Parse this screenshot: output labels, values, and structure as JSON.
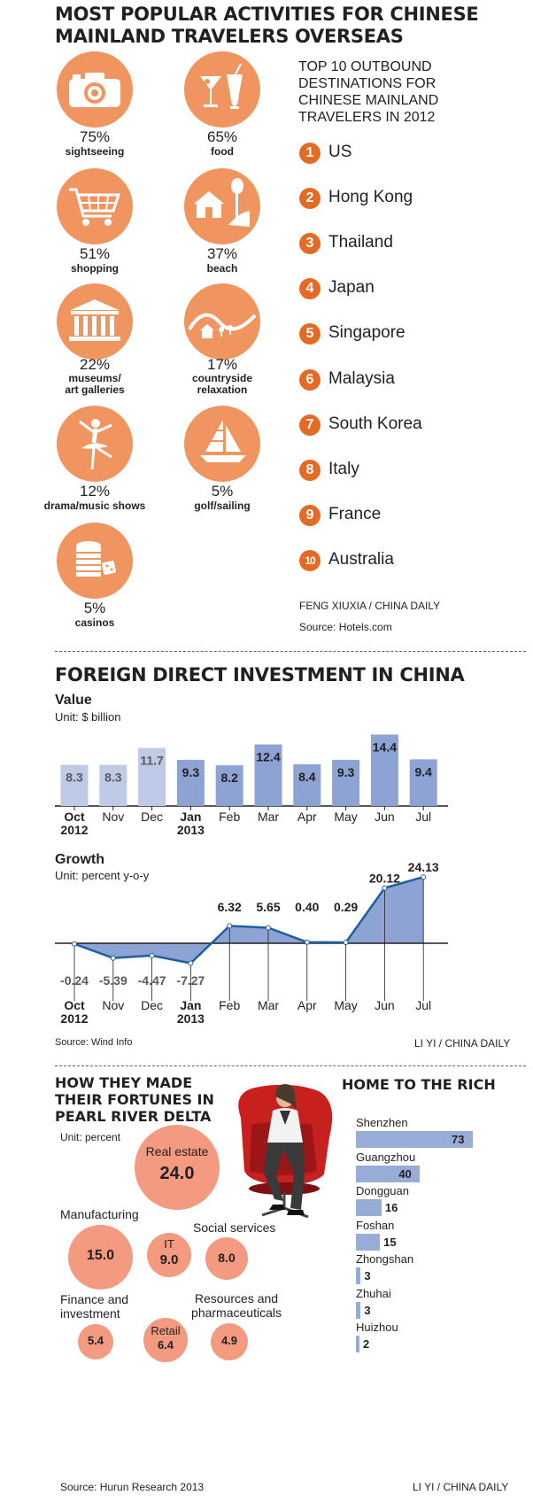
{
  "activities": {
    "title_line1": "MOST POPULAR ACTIVITIES FOR CHINESE",
    "title_line2": "MAINLAND TRAVELERS OVERSEAS",
    "items": [
      {
        "pct": "75%",
        "label": "sightseeing",
        "icon": "camera-icon"
      },
      {
        "pct": "65%",
        "label": "food",
        "icon": "cocktail-icon"
      },
      {
        "pct": "51%",
        "label": "shopping",
        "icon": "shopping-cart-icon"
      },
      {
        "pct": "37%",
        "label": "beach",
        "icon": "beach-house-icon"
      },
      {
        "pct": "22%",
        "label_line1": "museums/",
        "label_line2": "art galleries",
        "icon": "museum-icon"
      },
      {
        "pct": "17%",
        "label_line1": "countryside",
        "label_line2": "relaxation",
        "icon": "countryside-icon"
      },
      {
        "pct": "12%",
        "label": "drama/music shows",
        "icon": "ballet-dancer-icon"
      },
      {
        "pct": "5%",
        "label": "golf/sailing",
        "icon": "sailboat-icon"
      },
      {
        "pct": "5%",
        "label": "casinos",
        "icon": "casino-chips-icon"
      }
    ]
  },
  "destinations": {
    "title_lines": [
      "TOP 10 OUTBOUND",
      "DESTINATIONS FOR",
      "CHINESE MAINLAND",
      "TRAVELERS IN 2012"
    ],
    "items": [
      {
        "rank": "1",
        "name": "US"
      },
      {
        "rank": "2",
        "name": "Hong Kong"
      },
      {
        "rank": "3",
        "name": "Thailand"
      },
      {
        "rank": "4",
        "name": "Japan"
      },
      {
        "rank": "5",
        "name": "Singapore"
      },
      {
        "rank": "6",
        "name": "Malaysia"
      },
      {
        "rank": "7",
        "name": "South Korea"
      },
      {
        "rank": "8",
        "name": "Italy"
      },
      {
        "rank": "9",
        "name": "France"
      },
      {
        "rank": "10",
        "name": "Australia"
      }
    ],
    "credit": "FENG XIUXIA / CHINA DAILY",
    "source": "Source: Hotels.com"
  },
  "fdi": {
    "title": "FOREIGN DIRECT INVESTMENT IN CHINA",
    "value_title": "Value",
    "value_unit": "Unit: $ billion",
    "growth_title": "Growth",
    "growth_unit": "Unit: percent y-o-y",
    "months": [
      "Oct",
      "Nov",
      "Dec",
      "Jan",
      "Feb",
      "Mar",
      "Apr",
      "May",
      "Jun",
      "Jul"
    ],
    "month_years": [
      "2012",
      "",
      "",
      "2013",
      "",
      "",
      "",
      "",
      "",
      ""
    ],
    "source": "Source: Wind Info",
    "credit": "LI YI / CHINA DAILY"
  },
  "pearl": {
    "title_lines": [
      "HOW THEY MADE",
      "THEIR FORTUNES IN",
      "PEARL RIVER DELTA"
    ],
    "unit": "Unit: percent",
    "sectors": [
      {
        "label": "Real estate",
        "value": "24.0"
      },
      {
        "label": "Manufacturing",
        "value": "15.0"
      },
      {
        "label": "IT",
        "value": "9.0"
      },
      {
        "label": "Social services",
        "value": "8.0"
      },
      {
        "label_line1": "Finance and",
        "label_line2": "investment",
        "value": "5.4"
      },
      {
        "label": "Retail",
        "value": "6.4"
      },
      {
        "label_line1": "Resources and",
        "label_line2": "pharmaceuticals",
        "value": "4.9"
      }
    ],
    "source": "Source: Hurun Research 2013"
  },
  "rich": {
    "title": "HOME TO THE RICH",
    "credit": "LI YI / CHINA DAILY"
  },
  "chart_data": [
    {
      "type": "bar",
      "title": "Value",
      "ylabel": "Unit: $ billion",
      "categories": [
        "Oct 2012",
        "Nov",
        "Dec",
        "Jan 2013",
        "Feb",
        "Mar",
        "Apr",
        "May",
        "Jun",
        "Jul"
      ],
      "values": [
        8.3,
        8.3,
        11.7,
        9.3,
        8.2,
        12.4,
        8.4,
        9.3,
        14.4,
        9.4
      ],
      "colors": {
        "2012": "#bfcbe6",
        "2013": "#8ca3d3"
      }
    },
    {
      "type": "area",
      "title": "Growth",
      "ylabel": "Unit: percent y-o-y",
      "categories": [
        "Oct 2012",
        "Nov",
        "Dec",
        "Jan 2013",
        "Feb",
        "Mar",
        "Apr",
        "May",
        "Jun",
        "Jul"
      ],
      "values": [
        -0.24,
        -5.39,
        -4.47,
        -7.27,
        6.32,
        5.65,
        0.4,
        0.29,
        20.12,
        24.13
      ],
      "colors": {
        "fill": "#8ca3d3",
        "line": "#1d5fa0"
      }
    },
    {
      "type": "bar",
      "title": "HOME TO THE RICH",
      "orientation": "horizontal",
      "categories": [
        "Shenzhen",
        "Guangzhou",
        "Dongguan",
        "Foshan",
        "Zhongshan",
        "Zhuhai",
        "Huizhou"
      ],
      "values": [
        73,
        40,
        16,
        15,
        3,
        3,
        2
      ],
      "colors": {
        "bar": "#98acd8"
      }
    }
  ]
}
